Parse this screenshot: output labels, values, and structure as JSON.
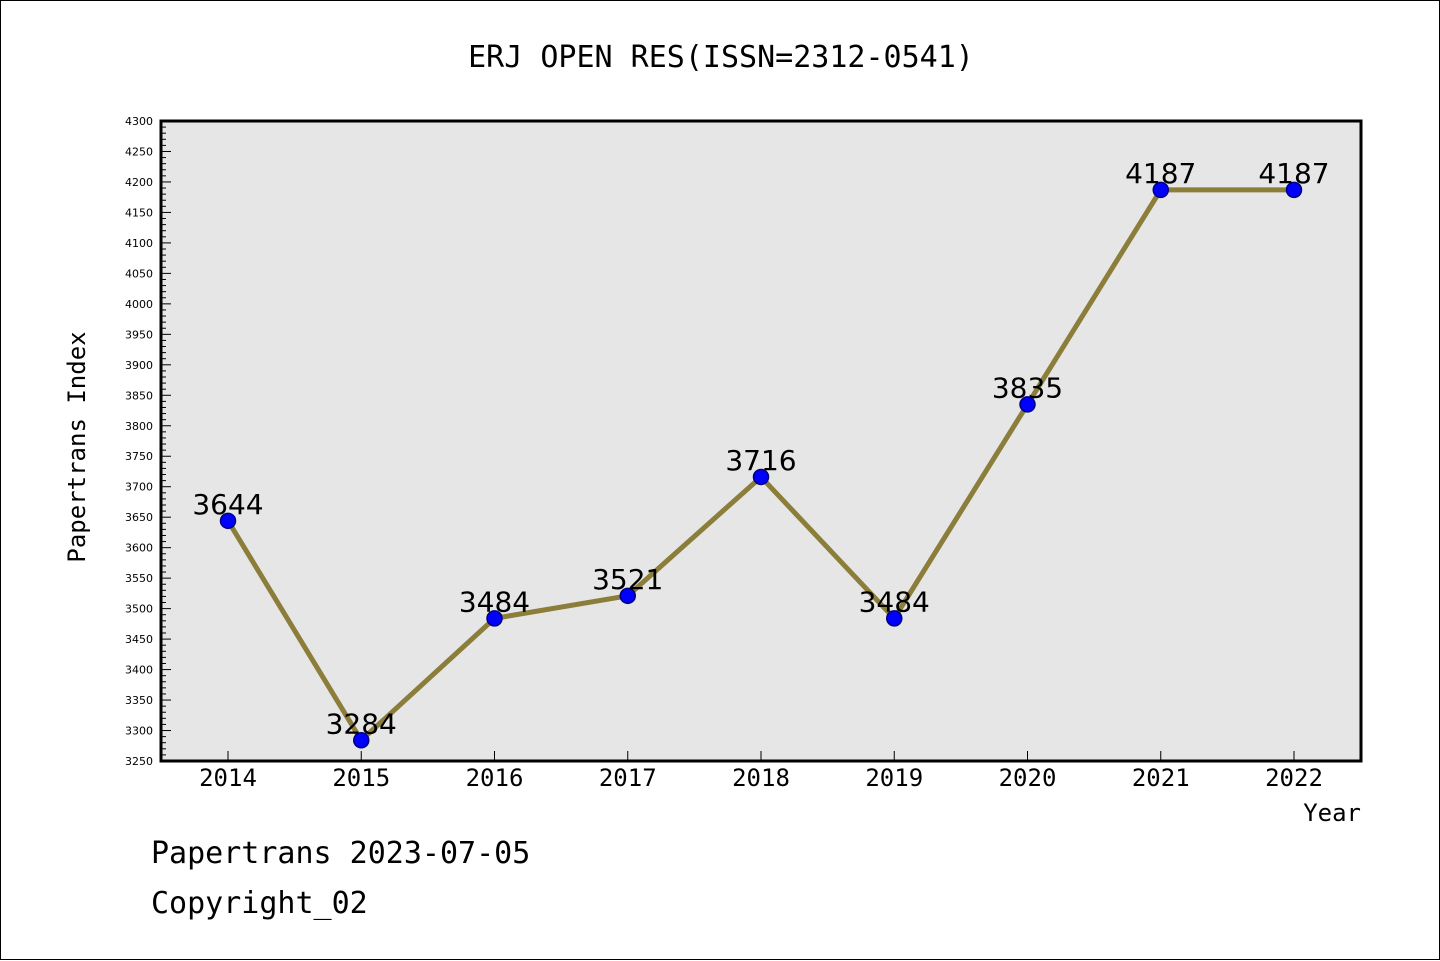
{
  "chart_data": {
    "type": "line",
    "title": "ERJ OPEN RES(ISSN=2312-0541)",
    "xlabel": "Year",
    "ylabel": "Papertrans Index",
    "categories": [
      "2014",
      "2015",
      "2016",
      "2017",
      "2018",
      "2019",
      "2020",
      "2021",
      "2022"
    ],
    "values": [
      3644,
      3284,
      3484,
      3521,
      3716,
      3484,
      3835,
      4187,
      4187
    ],
    "data_labels": [
      "3644",
      "3284",
      "3484",
      "3521",
      "3716",
      "3484",
      "3835",
      "4187",
      "4187"
    ],
    "ylim": [
      3250,
      4300
    ],
    "yticks": [
      3250,
      3300,
      3350,
      3400,
      3450,
      3500,
      3550,
      3600,
      3650,
      3700,
      3750,
      3800,
      3850,
      3900,
      3950,
      4000,
      4050,
      4100,
      4150,
      4200,
      4250,
      4300
    ],
    "grid": false,
    "legend": "none",
    "colors": {
      "line": "#8b7d3a",
      "marker_fill": "#0000ff",
      "marker_stroke": "#000080",
      "plot_background": "#e6e6e6"
    }
  },
  "footer": {
    "line1": "Papertrans 2023-07-05",
    "line2": "Copyright_02"
  }
}
